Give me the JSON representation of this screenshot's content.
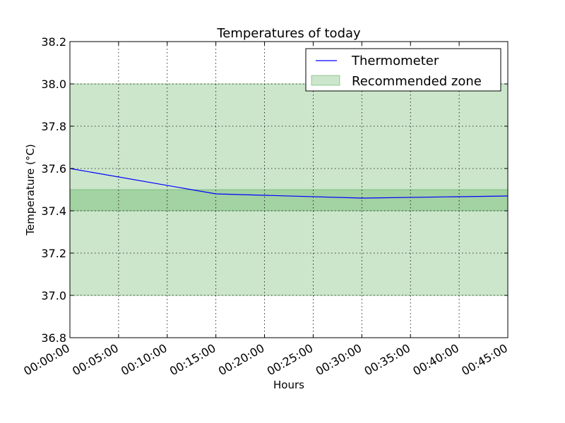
{
  "chart_data": {
    "type": "line",
    "title": "Temperatures of today",
    "xlabel": "Hours",
    "ylabel": "Temperature (°C)",
    "x_ticks": [
      "00:00:00",
      "00:05:00",
      "00:10:00",
      "00:15:00",
      "00:20:00",
      "00:25:00",
      "00:30:00",
      "00:35:00",
      "00:40:00",
      "00:45:00"
    ],
    "y_ticks": [
      "36.8",
      "37.0",
      "37.2",
      "37.4",
      "37.6",
      "37.8",
      "38.0",
      "38.2"
    ],
    "xlim": [
      "00:00:00",
      "00:45:00"
    ],
    "ylim": [
      36.8,
      38.2
    ],
    "grid": true,
    "legend_position": "top-right",
    "series": [
      {
        "name": "Thermometer",
        "color": "#0000ff",
        "x": [
          "00:00:00",
          "00:15:00",
          "00:30:00",
          "00:45:00"
        ],
        "values": [
          37.6,
          37.48,
          37.46,
          37.47
        ]
      }
    ],
    "bands": [
      {
        "name": "Recommended zone",
        "color": "#008000",
        "opacity": 0.2,
        "ymin": 37.0,
        "ymax": 38.0
      },
      {
        "color": "#008000",
        "opacity": 0.2,
        "ymin": 37.4,
        "ymax": 37.5
      }
    ]
  }
}
